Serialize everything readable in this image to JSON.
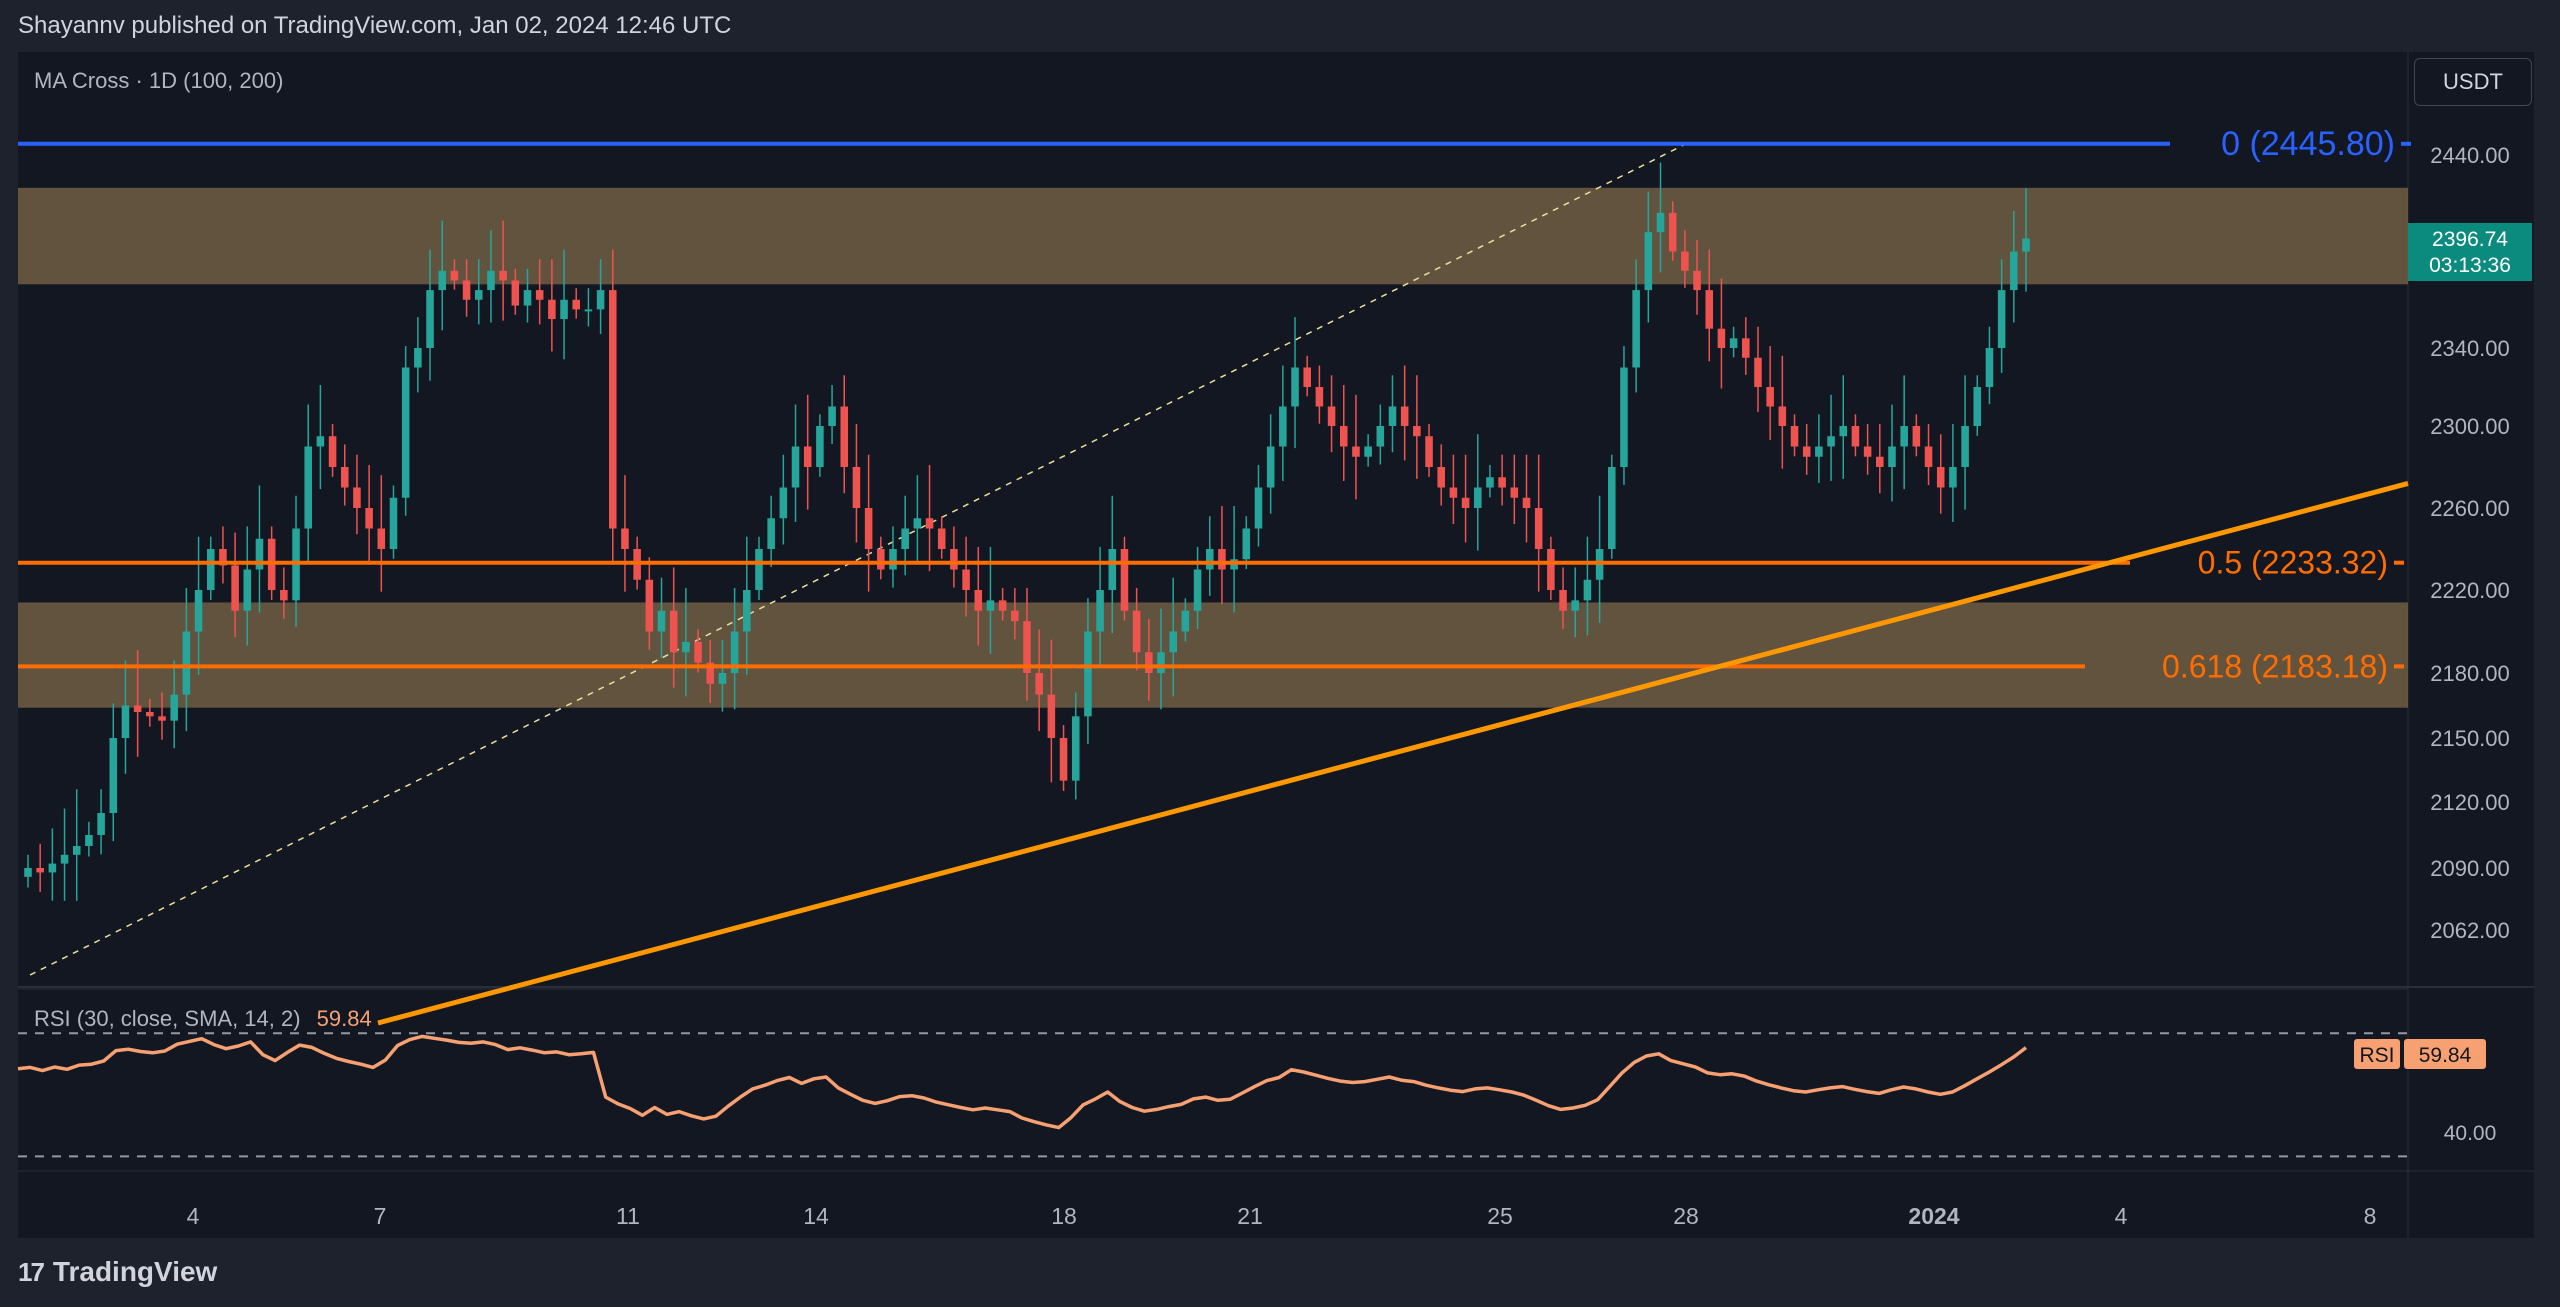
{
  "header": {
    "published": "Shayannv published on TradingView.com, Jan 02, 2024 12:46 UTC"
  },
  "footer": {
    "brand": "TradingView",
    "logo_text": "17"
  },
  "currency_button": "USDT",
  "colors": {
    "bull": "#26a69a",
    "bear": "#ef5350",
    "fib0": "#2962ff",
    "fib_orange": "#ff6d00",
    "trendline": "#ff9800",
    "zone": "#6b5a43",
    "rsi": "#f7a072",
    "price_badge": "#0b8b7d"
  },
  "chart_data": [
    {
      "type": "candlestick",
      "indicator_label": "MA Cross · 1D (100, 200)",
      "x_ticks": [
        "4",
        "7",
        "11",
        "14",
        "18",
        "21",
        "25",
        "28",
        "2024",
        "4",
        "8"
      ],
      "y_ticks": [
        "2440.00",
        "2340.00",
        "2300.00",
        "2260.00",
        "2220.00",
        "2180.00",
        "2150.00",
        "2120.00",
        "2090.00",
        "2062.00"
      ],
      "ylim": [
        2040,
        2480
      ],
      "last_price": "2396.74",
      "countdown": "03:13:36",
      "fib_levels": [
        {
          "label": "0 (2445.80)",
          "value": 2445.8
        },
        {
          "label": "0.5 (2233.32)",
          "value": 2233.32
        },
        {
          "label": "0.618 (2183.18)",
          "value": 2183.18
        }
      ],
      "zones": [
        {
          "low": 2373,
          "high": 2423
        },
        {
          "low": 2164,
          "high": 2214
        }
      ],
      "closes": [
        2090,
        2088,
        2092,
        2096,
        2100,
        2105,
        2115,
        2150,
        2165,
        2162,
        2160,
        2158,
        2170,
        2200,
        2220,
        2240,
        2232,
        2210,
        2230,
        2245,
        2220,
        2215,
        2250,
        2290,
        2295,
        2280,
        2270,
        2260,
        2250,
        2240,
        2265,
        2330,
        2340,
        2370,
        2380,
        2375,
        2365,
        2370,
        2380,
        2375,
        2362,
        2370,
        2365,
        2355,
        2365,
        2360,
        2360,
        2370,
        2250,
        2240,
        2225,
        2200,
        2210,
        2190,
        2195,
        2185,
        2175,
        2180,
        2200,
        2220,
        2240,
        2255,
        2270,
        2290,
        2280,
        2300,
        2310,
        2280,
        2260,
        2240,
        2230,
        2240,
        2250,
        2255,
        2250,
        2240,
        2230,
        2220,
        2210,
        2215,
        2210,
        2205,
        2180,
        2170,
        2150,
        2130,
        2160,
        2200,
        2220,
        2240,
        2210,
        2190,
        2180,
        2190,
        2200,
        2210,
        2230,
        2240,
        2230,
        2235,
        2250,
        2270,
        2290,
        2310,
        2330,
        2320,
        2310,
        2300,
        2290,
        2285,
        2290,
        2300,
        2310,
        2300,
        2295,
        2280,
        2270,
        2265,
        2260,
        2270,
        2275,
        2270,
        2265,
        2260,
        2240,
        2220,
        2210,
        2215,
        2225,
        2240,
        2280,
        2330,
        2370,
        2400,
        2410,
        2390,
        2380,
        2370,
        2350,
        2340,
        2345,
        2335,
        2320,
        2310,
        2300,
        2290,
        2285,
        2290,
        2295,
        2300,
        2290,
        2285,
        2280,
        2290,
        2300,
        2290,
        2280,
        2270,
        2280,
        2300,
        2320,
        2340,
        2370,
        2390,
        2396.74
      ],
      "trendline": [
        [
          0.0,
          2020
        ],
        [
          1.0,
          2272
        ]
      ]
    },
    {
      "type": "line",
      "indicator_label_a": "RSI (30, close, SMA, 14, 2)",
      "indicator_value": "59.84",
      "badge_label": "RSI",
      "badge_value": "59.84",
      "y_tick": "40.00",
      "ylim": [
        33,
        67
      ],
      "values": [
        55.2,
        55.5,
        54.8,
        55.6,
        55.1,
        56.0,
        56.2,
        56.9,
        59.2,
        59.5,
        59.0,
        58.7,
        59.1,
        60.6,
        61.2,
        61.8,
        60.5,
        59.6,
        60.2,
        61.1,
        58.3,
        57.0,
        58.8,
        60.4,
        59.9,
        58.6,
        57.5,
        56.8,
        56.2,
        55.5,
        57.1,
        60.3,
        61.6,
        62.3,
        61.9,
        61.5,
        61.0,
        60.8,
        61.1,
        60.5,
        59.4,
        59.8,
        59.3,
        58.7,
        58.9,
        58.3,
        58.5,
        58.8,
        49.0,
        47.5,
        46.5,
        45.0,
        46.7,
        45.2,
        45.8,
        44.9,
        44.2,
        44.8,
        47.0,
        49.0,
        50.8,
        51.6,
        52.6,
        53.3,
        52.0,
        53.0,
        53.4,
        51.0,
        49.6,
        48.3,
        47.6,
        48.2,
        49.1,
        49.3,
        48.8,
        47.9,
        47.3,
        46.7,
        46.2,
        46.6,
        46.2,
        45.8,
        44.4,
        43.6,
        42.9,
        42.3,
        44.5,
        47.3,
        48.6,
        50.1,
        48.0,
        46.7,
        45.9,
        46.3,
        46.9,
        47.4,
        48.6,
        49.0,
        48.3,
        48.5,
        49.9,
        51.3,
        52.6,
        53.3,
        55.0,
        54.5,
        53.8,
        53.1,
        52.5,
        52.2,
        52.4,
        52.9,
        53.4,
        52.7,
        52.4,
        51.6,
        51.0,
        50.5,
        50.2,
        50.8,
        51.0,
        50.6,
        50.1,
        49.4,
        48.3,
        47.1,
        46.3,
        46.6,
        47.2,
        48.4,
        51.3,
        54.3,
        56.6,
        58.0,
        58.5,
        57.0,
        56.3,
        55.6,
        54.3,
        53.9,
        54.1,
        53.6,
        52.5,
        51.7,
        51.0,
        50.4,
        50.1,
        50.6,
        51.0,
        51.3,
        50.7,
        50.2,
        49.8,
        50.6,
        51.2,
        50.8,
        50.1,
        49.6,
        50.1,
        51.5,
        53.0,
        54.5,
        56.1,
        57.8,
        59.84
      ]
    }
  ]
}
